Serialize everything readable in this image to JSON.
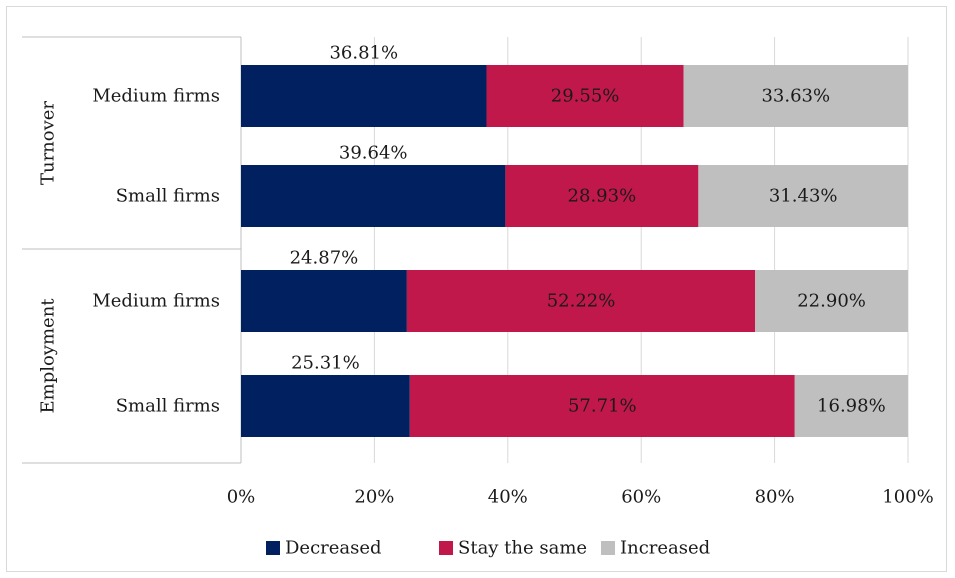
{
  "chart_data": {
    "type": "bar",
    "orientation": "horizontal",
    "stacked": "percent",
    "groups": [
      {
        "label": "Turnover",
        "categories": [
          "Medium firms",
          "Small firms"
        ]
      },
      {
        "label": "Employment",
        "categories": [
          "Medium firms",
          "Small firms"
        ]
      }
    ],
    "rows": [
      {
        "group": "Turnover",
        "category": "Medium firms",
        "values": [
          36.81,
          29.55,
          33.63
        ],
        "labels": [
          "36.81%",
          "29.55%",
          "33.63%"
        ]
      },
      {
        "group": "Turnover",
        "category": "Small firms",
        "values": [
          39.64,
          28.93,
          31.43
        ],
        "labels": [
          "39.64%",
          "28.93%",
          "31.43%"
        ]
      },
      {
        "group": "Employment",
        "category": "Medium firms",
        "values": [
          24.87,
          52.22,
          22.9
        ],
        "labels": [
          "24.87%",
          "52.22%",
          "22.90%"
        ]
      },
      {
        "group": "Employment",
        "category": "Small firms",
        "values": [
          25.31,
          57.71,
          16.98
        ],
        "labels": [
          "25.31%",
          "57.71%",
          "16.98%"
        ]
      }
    ],
    "series": [
      {
        "name": "Decreased",
        "color": "#002060"
      },
      {
        "name": "Stay the same",
        "color": "#c0184a"
      },
      {
        "name": "Increased",
        "color": "#bfbfbf"
      }
    ],
    "xlim": [
      0,
      100
    ],
    "x_ticks": [
      0,
      20,
      40,
      60,
      80,
      100
    ],
    "x_tick_labels": [
      "0%",
      "20%",
      "40%",
      "60%",
      "80%",
      "100%"
    ],
    "grid": true,
    "legend_position": "bottom",
    "title": "",
    "xlabel": "",
    "ylabel": ""
  }
}
